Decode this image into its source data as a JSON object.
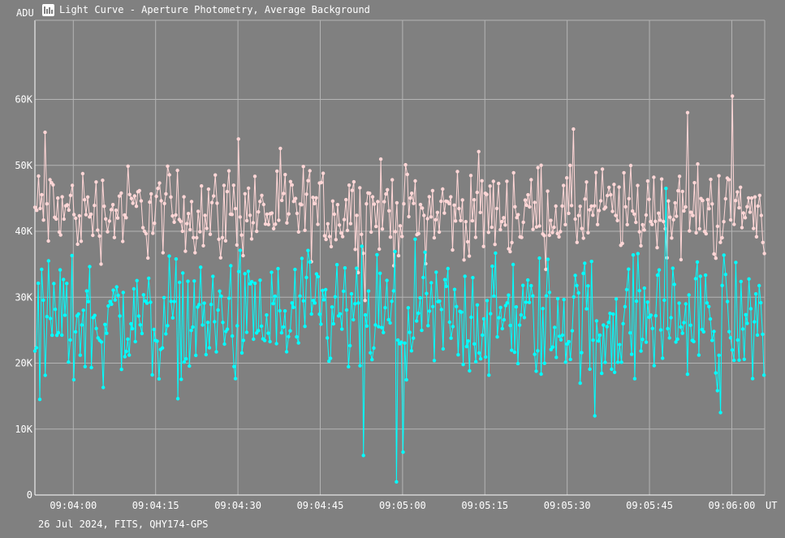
{
  "title": "Light Curve - Aperture Photometry, Average Background",
  "footer": "26 Jul 2024, FITS, QHY174-GPS",
  "icon": "app-logo-icon",
  "chart_data": {
    "type": "line",
    "y_unit_label": "ADU",
    "x_unit_label": "UT",
    "ylim": [
      0,
      72000
    ],
    "yticks": [
      0,
      10000,
      20000,
      30000,
      40000,
      50000,
      60000
    ],
    "ytick_labels": [
      "0",
      "10K",
      "20K",
      "30K",
      "40K",
      "50K",
      "60K"
    ],
    "xlim": [
      "09:03:53",
      "09:06:06"
    ],
    "xticks": [
      "09:04:00",
      "09:04:15",
      "09:04:30",
      "09:04:45",
      "09:05:00",
      "09:05:15",
      "09:05:30",
      "09:05:45",
      "09:06:00"
    ],
    "grid": true,
    "legend": "none",
    "series": [
      {
        "color": "#ffd6d6",
        "sampling": "irregular, approximately 0.3 s cadence between 09:03:53 and 09:06:06",
        "mean": 43000,
        "range": [
          29000,
          60500
        ],
        "notable": [
          {
            "x": "09:03:55",
            "y": 55000
          },
          {
            "x": "09:04:30",
            "y": 54000
          },
          {
            "x": "09:04:53",
            "y": 29500
          },
          {
            "x": "09:05:31",
            "y": 55500
          },
          {
            "x": "09:05:52",
            "y": 58000
          },
          {
            "x": "09:06:00",
            "y": 60500
          }
        ]
      },
      {
        "color": "#00ffff",
        "sampling": "irregular, approximately 0.3 s cadence between 09:03:53 and 09:06:06",
        "mean": 26500,
        "range": [
          2000,
          46500
        ],
        "notable": [
          {
            "x": "09:03:54",
            "y": 14500
          },
          {
            "x": "09:04:53",
            "y": 6000
          },
          {
            "x": "09:04:59",
            "y": 2000
          },
          {
            "x": "09:05:00",
            "y": 6500
          },
          {
            "x": "09:05:35",
            "y": 12000
          },
          {
            "x": "09:05:48",
            "y": 46500
          },
          {
            "x": "09:05:58",
            "y": 12500
          }
        ]
      }
    ]
  }
}
